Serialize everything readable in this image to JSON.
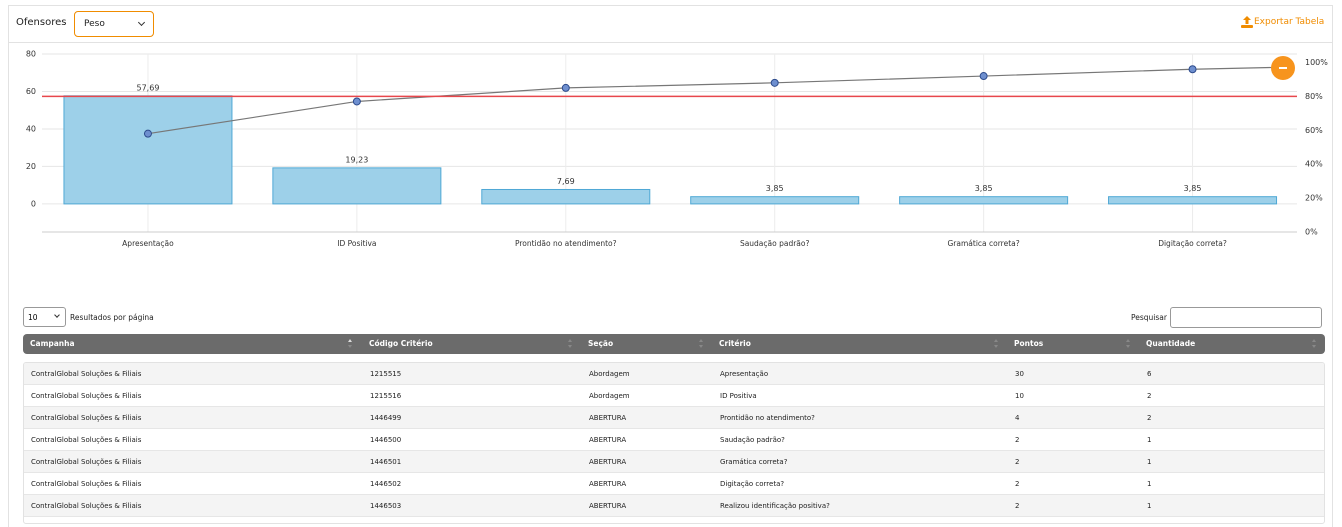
{
  "header": {
    "label": "Ofensores",
    "select": "Peso",
    "export": "Exportar Tabela"
  },
  "chart_data": {
    "type": "bar",
    "categories": [
      "Apresentação",
      "ID Positiva",
      "Prontidão no atendimento?",
      "Saudação padrão?",
      "Gramática correta?",
      "Digitação correta?"
    ],
    "series": [
      {
        "type": "bar",
        "color": "#9dd0e9",
        "values": [
          57.69,
          19.23,
          7.69,
          3.85,
          3.85,
          3.85
        ],
        "value_labels": [
          "57,69",
          "19,23",
          "7,69",
          "3,85",
          "3,85",
          "3,85"
        ]
      },
      {
        "type": "line",
        "axis": "y2",
        "color": "#777777",
        "values": [
          58,
          77,
          85,
          88,
          92,
          96
        ]
      }
    ],
    "threshold": {
      "axis": "y2",
      "value": 80,
      "color": "#e8474c"
    },
    "ylim": [
      -15,
      80
    ],
    "yticks": [
      0,
      20,
      40,
      60,
      80
    ],
    "y2lim": [
      0,
      105
    ],
    "y2ticks": [
      {
        "value": 0,
        "label": "0%"
      },
      {
        "value": 20,
        "label": "20%"
      },
      {
        "value": 40,
        "label": "40%"
      },
      {
        "value": 60,
        "label": "60%"
      },
      {
        "value": 80,
        "label": "80%"
      },
      {
        "value": 100,
        "label": "100%"
      }
    ],
    "grid": true
  },
  "table": {
    "page_size": "10",
    "page_size_label": "Resultados por página",
    "search_label": "Pesquisar",
    "columns": [
      "Campanha",
      "Código Critério",
      "Seção",
      "Critério",
      "Pontos",
      "Quantidade"
    ],
    "rows": [
      [
        "ContralGlobal Soluções & Filiais",
        "1215515",
        "Abordagem",
        "Apresentação",
        "30",
        "6"
      ],
      [
        "ContralGlobal Soluções & Filiais",
        "1215516",
        "Abordagem",
        "ID Positiva",
        "10",
        "2"
      ],
      [
        "ContralGlobal Soluções & Filiais",
        "1446499",
        "ABERTURA",
        "Prontidão no atendimento?",
        "4",
        "2"
      ],
      [
        "ContralGlobal Soluções & Filiais",
        "1446500",
        "ABERTURA",
        "Saudação padrão?",
        "2",
        "1"
      ],
      [
        "ContralGlobal Soluções & Filiais",
        "1446501",
        "ABERTURA",
        "Gramática correta?",
        "2",
        "1"
      ],
      [
        "ContralGlobal Soluções & Filiais",
        "1446502",
        "ABERTURA",
        "Digitação correta?",
        "2",
        "1"
      ],
      [
        "ContralGlobal Soluções & Filiais",
        "1446503",
        "ABERTURA",
        "Realizou identificação positiva?",
        "2",
        "1"
      ]
    ]
  }
}
